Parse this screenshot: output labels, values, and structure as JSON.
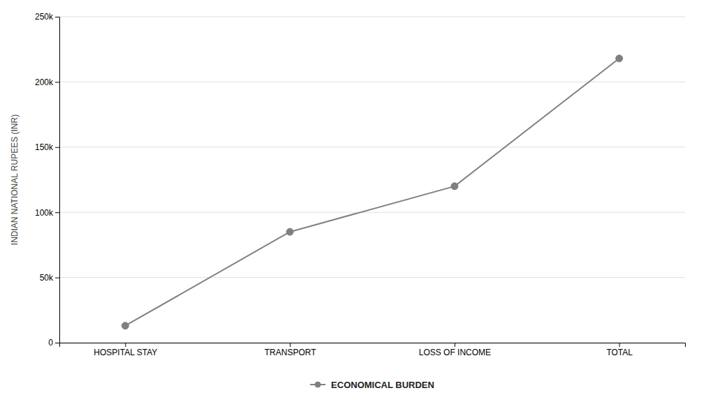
{
  "chart_data": {
    "type": "line",
    "categories": [
      "HOSPITAL STAY",
      "TRANSPORT",
      "LOSS OF INCOME",
      "TOTAL"
    ],
    "series": [
      {
        "name": "ECONOMICAL BURDEN",
        "color": "#808080",
        "marker": "circle",
        "line_style": "solid",
        "values": [
          13000,
          85000,
          120000,
          218000
        ]
      }
    ],
    "ylabel": "INDIAN NATIONAL RUPEES (INR)",
    "ylim": [
      0,
      250000
    ],
    "yticks": [
      0,
      {
        "value": 50000,
        "label": "50k"
      },
      {
        "value": 100000,
        "label": "100k"
      },
      {
        "value": 150000,
        "label": "150k"
      },
      {
        "value": 200000,
        "label": "200k"
      },
      {
        "value": 250000,
        "label": "250k"
      }
    ],
    "grid": true,
    "legend": "bottom"
  }
}
